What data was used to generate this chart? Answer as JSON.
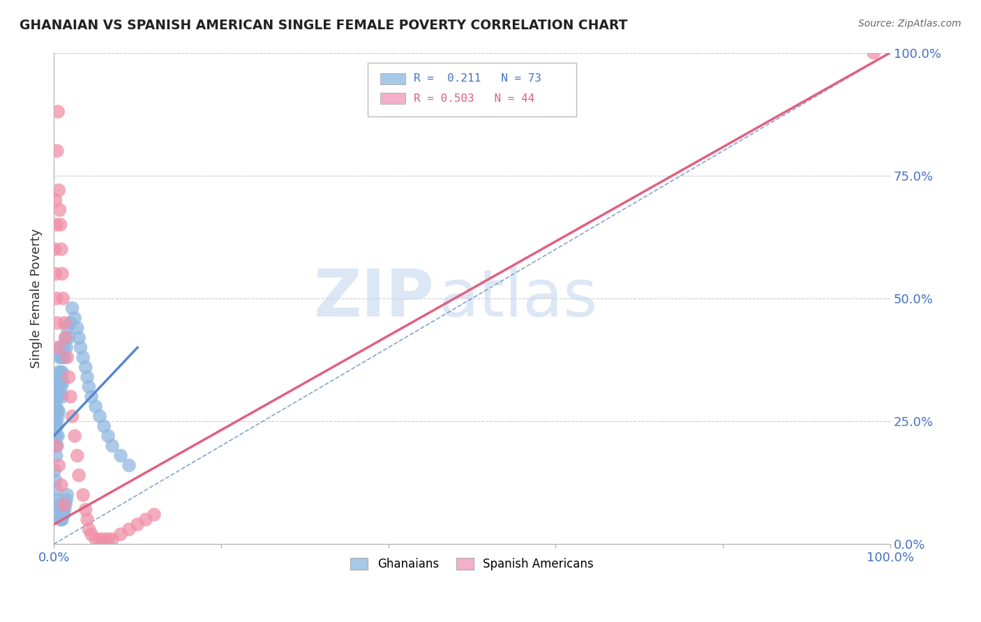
{
  "title": "GHANAIAN VS SPANISH AMERICAN SINGLE FEMALE POVERTY CORRELATION CHART",
  "source": "Source: ZipAtlas.com",
  "ylabel": "Single Female Poverty",
  "legend_label1": "R =  0.211   N = 73",
  "legend_label2": "R = 0.503   N = 44",
  "legend_color1": "#a8c8e8",
  "legend_color2": "#f4b0c8",
  "watermark_zip": "ZIP",
  "watermark_atlas": "atlas",
  "bg_color": "#ffffff",
  "scatter_color_ghanaians": "#90b8e0",
  "scatter_color_spanish": "#f090a8",
  "trend_color_ghanaians": "#5588cc",
  "trend_color_spanish": "#e06080",
  "diagonal_color": "#88aadd",
  "grid_color": "#cccccc",
  "title_color": "#222222",
  "tick_color": "#4472c4",
  "source_color": "#666666",
  "ghanaians_x": [
    0.001,
    0.001,
    0.001,
    0.002,
    0.002,
    0.002,
    0.002,
    0.003,
    0.003,
    0.003,
    0.003,
    0.003,
    0.004,
    0.004,
    0.004,
    0.004,
    0.005,
    0.005,
    0.005,
    0.005,
    0.006,
    0.006,
    0.006,
    0.007,
    0.007,
    0.008,
    0.008,
    0.009,
    0.009,
    0.01,
    0.01,
    0.011,
    0.011,
    0.012,
    0.013,
    0.014,
    0.015,
    0.016,
    0.018,
    0.02,
    0.022,
    0.025,
    0.028,
    0.03,
    0.032,
    0.035,
    0.038,
    0.04,
    0.042,
    0.045,
    0.05,
    0.055,
    0.06,
    0.065,
    0.07,
    0.08,
    0.09,
    0.001,
    0.002,
    0.003,
    0.004,
    0.005,
    0.006,
    0.007,
    0.008,
    0.009,
    0.01,
    0.011,
    0.012,
    0.013,
    0.014,
    0.015,
    0.016
  ],
  "ghanaians_y": [
    0.28,
    0.25,
    0.22,
    0.3,
    0.27,
    0.24,
    0.2,
    0.32,
    0.28,
    0.25,
    0.22,
    0.18,
    0.3,
    0.27,
    0.24,
    0.2,
    0.33,
    0.3,
    0.26,
    0.22,
    0.35,
    0.31,
    0.27,
    0.38,
    0.33,
    0.4,
    0.35,
    0.38,
    0.32,
    0.35,
    0.3,
    0.38,
    0.33,
    0.4,
    0.38,
    0.42,
    0.4,
    0.44,
    0.42,
    0.45,
    0.48,
    0.46,
    0.44,
    0.42,
    0.4,
    0.38,
    0.36,
    0.34,
    0.32,
    0.3,
    0.28,
    0.26,
    0.24,
    0.22,
    0.2,
    0.18,
    0.16,
    0.15,
    0.13,
    0.11,
    0.09,
    0.08,
    0.07,
    0.06,
    0.05,
    0.05,
    0.05,
    0.06,
    0.06,
    0.07,
    0.08,
    0.09,
    0.1
  ],
  "spanish_x": [
    0.001,
    0.002,
    0.002,
    0.003,
    0.003,
    0.004,
    0.004,
    0.005,
    0.005,
    0.006,
    0.007,
    0.008,
    0.009,
    0.01,
    0.011,
    0.013,
    0.014,
    0.016,
    0.018,
    0.02,
    0.022,
    0.025,
    0.028,
    0.03,
    0.035,
    0.038,
    0.04,
    0.042,
    0.045,
    0.05,
    0.055,
    0.06,
    0.065,
    0.07,
    0.08,
    0.09,
    0.1,
    0.11,
    0.12,
    0.98,
    0.003,
    0.006,
    0.009,
    0.012
  ],
  "spanish_y": [
    0.6,
    0.7,
    0.55,
    0.65,
    0.5,
    0.8,
    0.45,
    0.88,
    0.4,
    0.72,
    0.68,
    0.65,
    0.6,
    0.55,
    0.5,
    0.45,
    0.42,
    0.38,
    0.34,
    0.3,
    0.26,
    0.22,
    0.18,
    0.14,
    0.1,
    0.07,
    0.05,
    0.03,
    0.02,
    0.01,
    0.01,
    0.01,
    0.01,
    0.01,
    0.02,
    0.03,
    0.04,
    0.05,
    0.06,
    1.0,
    0.2,
    0.16,
    0.12,
    0.08
  ],
  "trend_gh_x0": 0.0,
  "trend_gh_y0": 0.22,
  "trend_gh_x1": 0.1,
  "trend_gh_y1": 0.4,
  "trend_sp_x0": 0.0,
  "trend_sp_y0": 0.04,
  "trend_sp_x1": 1.0,
  "trend_sp_y1": 1.0,
  "diag_color": "#7799cc",
  "xlim": [
    0.0,
    1.0
  ],
  "ylim": [
    0.0,
    1.0
  ],
  "xticks": [
    0.0,
    0.2,
    0.4,
    0.6,
    0.8,
    1.0
  ],
  "yticks_right": [
    0.0,
    0.25,
    0.5,
    0.75,
    1.0
  ],
  "ytick_labels_right": [
    "0.0%",
    "25.0%",
    "50.0%",
    "75.0%",
    "100.0%"
  ],
  "xtick_labels": [
    "0.0%",
    "",
    "",
    "",
    "",
    "100.0%"
  ]
}
